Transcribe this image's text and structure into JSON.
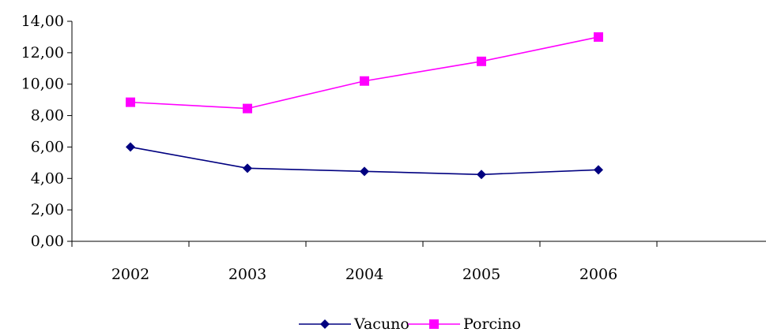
{
  "chart_data": {
    "type": "line",
    "categories": [
      "2002",
      "2003",
      "2004",
      "2005",
      "2006"
    ],
    "ylim": [
      0,
      14
    ],
    "yticks": [
      "0,00",
      "2,00",
      "4,00",
      "6,00",
      "8,00",
      "10,00",
      "12,00",
      "14,00"
    ],
    "grid": false,
    "legend": "bottom",
    "series": [
      {
        "name": "Vacuno",
        "color": "#000080",
        "marker": "diamond",
        "values": [
          6.0,
          4.65,
          4.45,
          4.25,
          4.55
        ]
      },
      {
        "name": "Porcino",
        "color": "#FF00FF",
        "marker": "square",
        "values": [
          8.85,
          8.45,
          10.2,
          11.45,
          13.0
        ]
      }
    ]
  }
}
